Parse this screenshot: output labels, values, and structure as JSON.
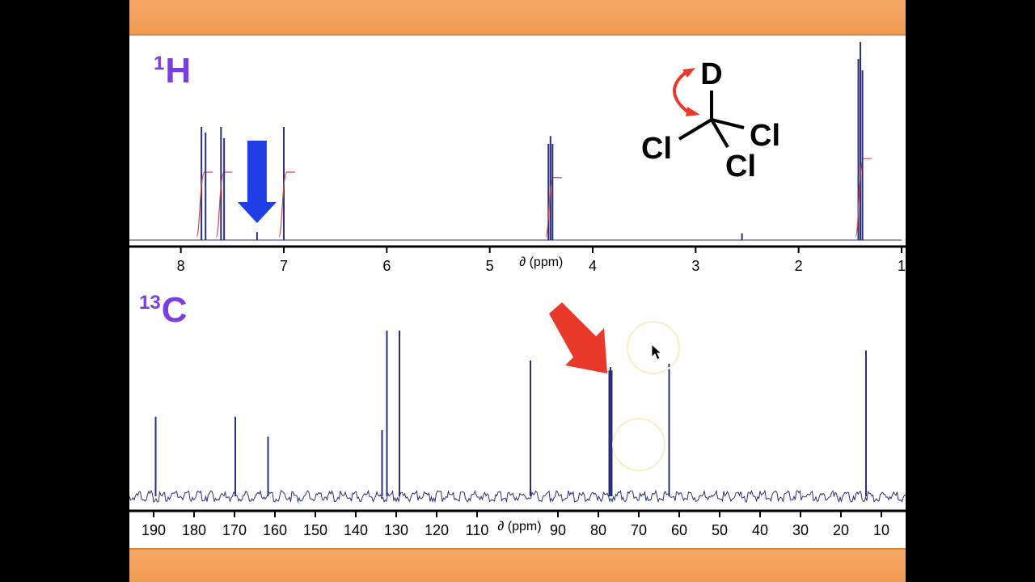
{
  "chart_data": [
    {
      "type": "line",
      "nucleus": {
        "mass": "1",
        "symbol": "H"
      },
      "xlabel": "∂ (ppm)",
      "xlim": [
        8.5,
        1.0
      ],
      "xticks": [
        8,
        7,
        6,
        5,
        4,
        3,
        2,
        1
      ],
      "reversed_axis": true,
      "peaks": [
        {
          "ppm": 7.8,
          "height": 1.0,
          "integral": true
        },
        {
          "ppm": 7.76,
          "height": 0.95,
          "integral": false
        },
        {
          "ppm": 7.61,
          "height": 1.0,
          "integral": true
        },
        {
          "ppm": 7.58,
          "height": 0.9,
          "integral": false
        },
        {
          "ppm": 7.26,
          "height": 0.07,
          "integral": false
        },
        {
          "ppm": 7.0,
          "height": 1.0,
          "integral": true
        },
        {
          "ppm": 4.43,
          "height": 0.85,
          "integral": false
        },
        {
          "ppm": 4.41,
          "height": 0.92,
          "integral": true
        },
        {
          "ppm": 4.39,
          "height": 0.85,
          "integral": false
        },
        {
          "ppm": 2.55,
          "height": 0.06,
          "integral": false
        },
        {
          "ppm": 1.42,
          "height": 1.6,
          "integral": false
        },
        {
          "ppm": 1.4,
          "height": 1.75,
          "integral": true
        },
        {
          "ppm": 1.38,
          "height": 1.5,
          "integral": false
        }
      ],
      "arrow": {
        "color": "#1f3fe6",
        "ppm": 7.26
      }
    },
    {
      "type": "line",
      "nucleus": {
        "mass": "13",
        "symbol": "C"
      },
      "xlabel": "∂ (ppm)",
      "xlim": [
        196,
        4
      ],
      "xticks": [
        190,
        180,
        170,
        160,
        150,
        140,
        130,
        120,
        110,
        90,
        80,
        70,
        60,
        50,
        40,
        30,
        20,
        10
      ],
      "reversed_axis": true,
      "peaks": [
        {
          "ppm": 189.5,
          "height": 0.48
        },
        {
          "ppm": 169.8,
          "height": 0.48
        },
        {
          "ppm": 161.7,
          "height": 0.36
        },
        {
          "ppm": 133.5,
          "height": 0.4
        },
        {
          "ppm": 132.3,
          "height": 1.0
        },
        {
          "ppm": 129.2,
          "height": 1.0
        },
        {
          "ppm": 96.8,
          "height": 0.82
        },
        {
          "ppm": 77.3,
          "height": 0.76
        },
        {
          "ppm": 77.0,
          "height": 0.78
        },
        {
          "ppm": 76.7,
          "height": 0.76
        },
        {
          "ppm": 62.5,
          "height": 0.8
        },
        {
          "ppm": 13.8,
          "height": 0.88
        }
      ],
      "arrow": {
        "color": "#e8392b",
        "ppm": 77.0
      }
    }
  ],
  "molecule": {
    "center": "C",
    "atoms": [
      "D",
      "Cl",
      "Cl",
      "Cl"
    ],
    "arrow_color": "#e8392b"
  },
  "colors": {
    "spectrum": "#2b2f7a",
    "integral": "#d24a4a",
    "label": "#7a3fe0"
  }
}
